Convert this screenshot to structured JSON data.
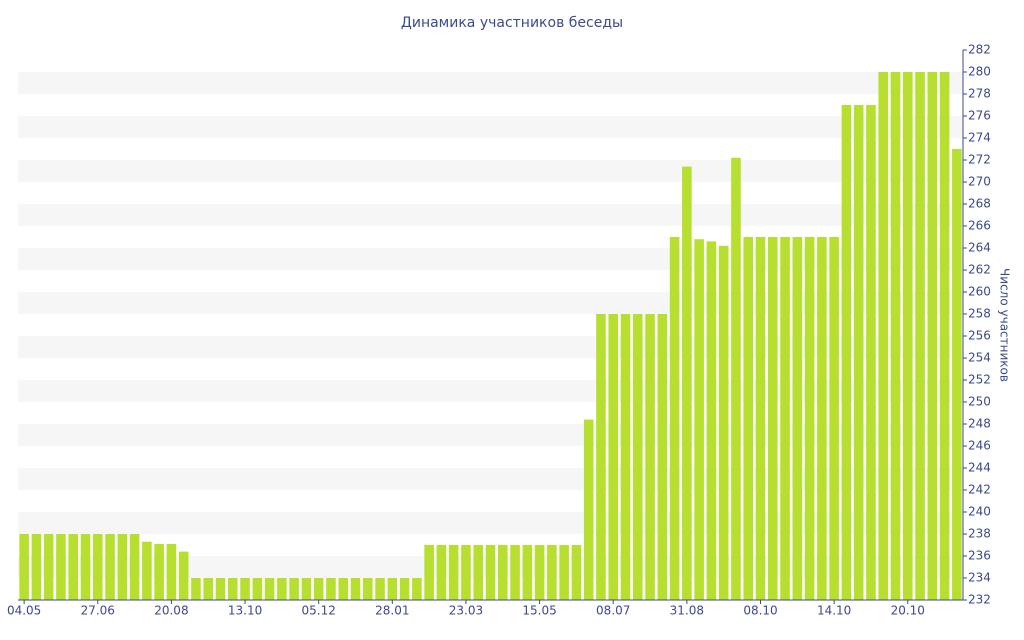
{
  "chart_data": {
    "type": "bar",
    "title": "Динамика участников беседы",
    "y_axis_label": "Число участников",
    "categories": [
      "04.05",
      null,
      null,
      null,
      null,
      null,
      "27.06",
      null,
      null,
      null,
      null,
      null,
      "20.08",
      null,
      null,
      null,
      null,
      null,
      "13.10",
      null,
      null,
      null,
      null,
      null,
      "05.12",
      null,
      null,
      null,
      null,
      null,
      "28.01",
      null,
      null,
      null,
      null,
      null,
      "23.03",
      null,
      null,
      null,
      null,
      null,
      "15.05",
      null,
      null,
      null,
      null,
      null,
      "08.07",
      null,
      null,
      null,
      null,
      null,
      "31.08",
      null,
      null,
      null,
      null,
      null,
      "08.10",
      null,
      null,
      null,
      null,
      null,
      "14.10",
      null,
      null,
      null,
      null,
      null,
      "20.10",
      null,
      null,
      null,
      null
    ],
    "values": [
      238,
      238,
      238,
      238,
      238,
      238,
      238,
      238,
      238,
      238,
      237.3,
      237.1,
      237.1,
      236.4,
      234,
      234,
      234,
      234,
      234,
      234,
      234,
      234,
      234,
      234,
      234,
      234,
      234,
      234,
      234,
      234,
      234,
      234,
      234,
      237,
      237,
      237,
      237,
      237,
      237,
      237,
      237,
      237,
      237,
      237,
      237,
      237,
      248.4,
      258,
      258,
      258,
      258,
      258,
      258,
      265,
      271.4,
      264.8,
      264.6,
      264.2,
      272.2,
      265,
      265,
      265,
      265,
      265,
      265,
      265,
      265,
      277,
      277,
      277,
      280,
      280,
      280,
      280,
      280,
      280,
      273
    ],
    "color": "#b7df2f",
    "ylim": [
      232,
      282
    ],
    "yticks": [
      232,
      234,
      236,
      238,
      240,
      242,
      244,
      246,
      248,
      250,
      252,
      254,
      256,
      258,
      260,
      262,
      264,
      266,
      268,
      270,
      272,
      274,
      276,
      278,
      280,
      282
    ],
    "y_axis_side": "right",
    "grid": "bands"
  }
}
